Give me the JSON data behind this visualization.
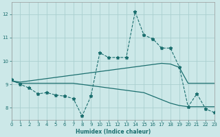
{
  "xlabel": "Humidex (Indice chaleur)",
  "bg_color": "#cce8e8",
  "grid_color": "#aacfcf",
  "line_color": "#1a6e6e",
  "xmin": 0,
  "xmax": 23,
  "ymin": 7.5,
  "ymax": 12.5,
  "yticks": [
    8,
    9,
    10,
    11,
    12
  ],
  "xticks": [
    0,
    1,
    2,
    3,
    4,
    5,
    6,
    7,
    8,
    9,
    10,
    11,
    12,
    13,
    14,
    15,
    16,
    17,
    18,
    19,
    20,
    21,
    22,
    23
  ],
  "line1_x": [
    0,
    1,
    2,
    3,
    4,
    5,
    6,
    7,
    8,
    9,
    10,
    11,
    12,
    13,
    14,
    15,
    16,
    17,
    18,
    19,
    20,
    21,
    22,
    23
  ],
  "line1_y": [
    9.2,
    9.0,
    8.85,
    8.6,
    8.65,
    8.55,
    8.5,
    8.4,
    7.65,
    8.5,
    10.35,
    10.15,
    10.15,
    10.15,
    12.1,
    11.1,
    10.95,
    10.55,
    10.55,
    9.75,
    8.05,
    8.6,
    7.95,
    7.8
  ],
  "line2_x": [
    0,
    1,
    2,
    3,
    4,
    5,
    6,
    7,
    8,
    9,
    10,
    11,
    12,
    13,
    14,
    15,
    16,
    17,
    18,
    19,
    20,
    21,
    22,
    23
  ],
  "line2_y": [
    9.15,
    9.1,
    9.15,
    9.2,
    9.25,
    9.3,
    9.35,
    9.4,
    9.45,
    9.5,
    9.55,
    9.6,
    9.65,
    9.7,
    9.75,
    9.8,
    9.85,
    9.9,
    9.87,
    9.73,
    9.05,
    9.05,
    9.05,
    9.05
  ],
  "line3_x": [
    0,
    1,
    2,
    3,
    4,
    5,
    6,
    7,
    8,
    9,
    10,
    11,
    12,
    13,
    14,
    15,
    16,
    17,
    18,
    19,
    20,
    21,
    22,
    23
  ],
  "line3_y": [
    9.15,
    9.05,
    9.05,
    9.05,
    9.05,
    9.05,
    9.05,
    9.05,
    9.0,
    8.95,
    8.9,
    8.85,
    8.8,
    8.75,
    8.7,
    8.65,
    8.5,
    8.35,
    8.2,
    8.1,
    8.05,
    8.05,
    8.05,
    8.05
  ]
}
